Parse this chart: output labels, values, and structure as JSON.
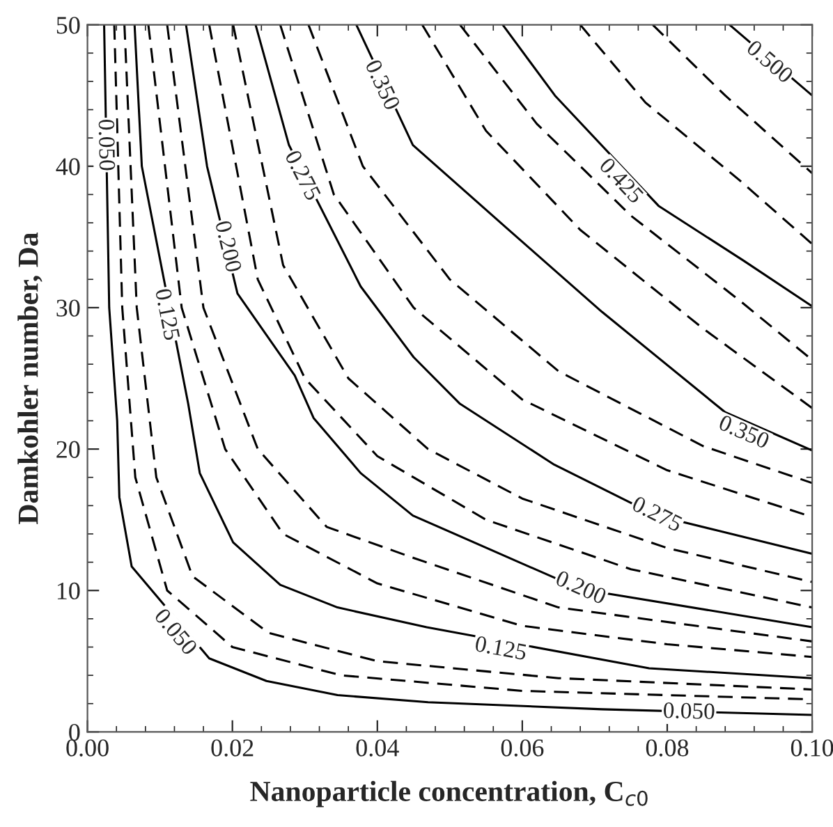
{
  "chart_data": {
    "type": "line",
    "xlabel": "Nanoparticle concentration, C$_{c0}$",
    "ylabel": "Damkohler number, Da",
    "xlim": [
      0,
      0.1
    ],
    "ylim": [
      0,
      50
    ],
    "xticks": [
      {
        "value": 0,
        "label": "0.00"
      },
      {
        "value": 0.02,
        "label": "0.02"
      },
      {
        "value": 0.04,
        "label": "0.04"
      },
      {
        "value": 0.06,
        "label": "0.06"
      },
      {
        "value": 0.08,
        "label": "0.08"
      },
      {
        "value": 0.1,
        "label": "0.10"
      }
    ],
    "yticks": [
      0,
      10,
      20,
      30,
      40,
      50
    ],
    "grid": false,
    "marker": "none",
    "series": [
      {
        "color": "#000000",
        "line_style": "solid",
        "x": [
          0.0023,
          0.003,
          0.0041,
          0.0044,
          0.0061,
          0.0168,
          0.0247,
          0.0345,
          0.047,
          0.071,
          0.1
        ],
        "values": [
          50,
          30,
          22,
          16.6,
          11.7,
          5.2,
          3.6,
          2.6,
          2.1,
          1.6,
          1.2
        ]
      },
      {
        "color": "#000000",
        "line_style": "dashed",
        "x": [
          0.0037,
          0.0048,
          0.0066,
          0.011,
          0.02,
          0.035,
          0.06,
          0.1
        ],
        "values": [
          50,
          30,
          18,
          10,
          6.0,
          4.0,
          2.9,
          2.3
        ]
      },
      {
        "color": "#000000",
        "line_style": "dashed",
        "x": [
          0.0051,
          0.0068,
          0.0095,
          0.0145,
          0.025,
          0.04,
          0.065,
          0.1
        ],
        "values": [
          50,
          30,
          18,
          11,
          7.0,
          5.0,
          3.8,
          3.0
        ]
      },
      {
        "color": "#000000",
        "line_style": "solid",
        "x": [
          0.0065,
          0.0075,
          0.0139,
          0.0155,
          0.0201,
          0.0266,
          0.0345,
          0.0468,
          0.0775,
          0.1
        ],
        "values": [
          50,
          40,
          23.2,
          18.3,
          13.4,
          10.4,
          8.8,
          7.4,
          4.5,
          3.8
        ]
      },
      {
        "color": "#000000",
        "line_style": "dashed",
        "x": [
          0.0084,
          0.013,
          0.019,
          0.027,
          0.04,
          0.06,
          0.08,
          0.1
        ],
        "values": [
          50,
          30,
          20,
          14,
          10.5,
          7.5,
          6.2,
          5.3
        ]
      },
      {
        "color": "#000000",
        "line_style": "dashed",
        "x": [
          0.011,
          0.016,
          0.0235,
          0.033,
          0.045,
          0.065,
          0.1
        ],
        "values": [
          50,
          30,
          20,
          14.5,
          12.3,
          8.8,
          6.4
        ]
      },
      {
        "color": "#000000",
        "line_style": "solid",
        "x": [
          0.0136,
          0.0165,
          0.0207,
          0.0286,
          0.0312,
          0.0377,
          0.0449,
          0.068,
          0.1
        ],
        "values": [
          50,
          40,
          31,
          25.2,
          22.2,
          18.3,
          15.3,
          10.1,
          7.4
        ]
      },
      {
        "color": "#000000",
        "line_style": "dashed",
        "x": [
          0.0168,
          0.0235,
          0.03,
          0.04,
          0.055,
          0.075,
          0.1
        ],
        "values": [
          50,
          32,
          25,
          19.5,
          15,
          11.5,
          8.8
        ]
      },
      {
        "color": "#000000",
        "line_style": "dashed",
        "x": [
          0.0201,
          0.027,
          0.036,
          0.047,
          0.06,
          0.08,
          0.1
        ],
        "values": [
          50,
          33,
          25,
          20,
          16.5,
          13,
          10.6
        ]
      },
      {
        "color": "#000000",
        "line_style": "solid",
        "x": [
          0.0232,
          0.0278,
          0.0377,
          0.045,
          0.0514,
          0.0644,
          0.0785,
          0.1
        ],
        "values": [
          50,
          41.5,
          31.5,
          26.5,
          23.2,
          18.9,
          15.3,
          12.6
        ]
      },
      {
        "color": "#000000",
        "line_style": "dashed",
        "x": [
          0.0266,
          0.034,
          0.045,
          0.06,
          0.08,
          0.1
        ],
        "values": [
          50,
          38,
          30,
          23.5,
          18.5,
          15.2
        ]
      },
      {
        "color": "#000000",
        "line_style": "dashed",
        "x": [
          0.0305,
          0.038,
          0.05,
          0.065,
          0.085,
          0.1
        ],
        "values": [
          50,
          40,
          32,
          25.5,
          20.2,
          17.6
        ]
      },
      {
        "color": "#000000",
        "line_style": "solid",
        "x": [
          0.0371,
          0.0449,
          0.0579,
          0.071,
          0.088,
          0.1
        ],
        "values": [
          50,
          41.5,
          35.6,
          29.7,
          22.6,
          19.9
        ]
      },
      {
        "color": "#000000",
        "line_style": "dashed",
        "x": [
          0.0462,
          0.055,
          0.068,
          0.085,
          0.1
        ],
        "values": [
          50,
          42.5,
          35.5,
          28.5,
          22.9
        ]
      },
      {
        "color": "#000000",
        "line_style": "dashed",
        "x": [
          0.0514,
          0.062,
          0.075,
          0.09,
          0.1
        ],
        "values": [
          50,
          43,
          36.5,
          30.5,
          26.3
        ]
      },
      {
        "color": "#000000",
        "line_style": "solid",
        "x": [
          0.0573,
          0.0645,
          0.0788,
          0.0906,
          0.1
        ],
        "values": [
          50,
          45,
          37.2,
          33.3,
          30.1
        ]
      },
      {
        "color": "#000000",
        "line_style": "dashed",
        "x": [
          0.068,
          0.077,
          0.09,
          0.1
        ],
        "values": [
          50,
          44.5,
          39,
          34.5
        ]
      },
      {
        "color": "#000000",
        "line_style": "dashed",
        "x": [
          0.078,
          0.088,
          0.1
        ],
        "values": [
          50,
          45,
          39.5
        ]
      },
      {
        "color": "#000000",
        "line_style": "solid",
        "x": [
          0.0886,
          0.1
        ],
        "values": [
          50,
          45.0
        ]
      }
    ],
    "annotations": [
      {
        "text": "0.050",
        "x": 0.0024,
        "y": 41.5
      },
      {
        "text": "0.050",
        "x": 0.012,
        "y": 7.0
      },
      {
        "text": "0.050",
        "x": 0.083,
        "y": 1.35
      },
      {
        "text": "0.125",
        "x": 0.0108,
        "y": 29.5
      },
      {
        "text": "0.125",
        "x": 0.057,
        "y": 5.8
      },
      {
        "text": "0.200",
        "x": 0.0192,
        "y": 34.3
      },
      {
        "text": "0.200",
        "x": 0.068,
        "y": 10.1
      },
      {
        "text": "0.275",
        "x": 0.0295,
        "y": 39.3
      },
      {
        "text": "0.275",
        "x": 0.0785,
        "y": 15.3
      },
      {
        "text": "0.350",
        "x": 0.0405,
        "y": 45.7
      },
      {
        "text": "0.350",
        "x": 0.0905,
        "y": 21.1
      },
      {
        "text": "0.425",
        "x": 0.0735,
        "y": 38.9
      },
      {
        "text": "0.500",
        "x": 0.094,
        "y": 47.3
      }
    ]
  }
}
